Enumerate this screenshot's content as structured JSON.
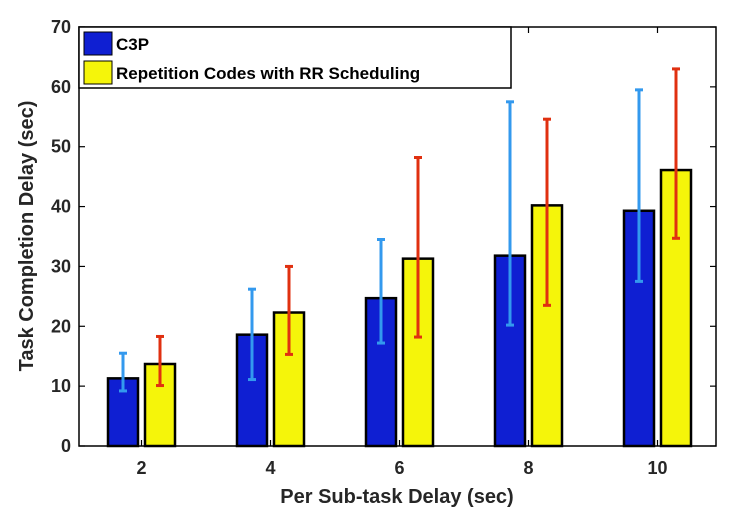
{
  "chart_data": {
    "type": "bar",
    "title": "",
    "xlabel": "Per Sub-task Delay (sec)",
    "ylabel": "Task Completion Delay (sec)",
    "categories": [
      "2",
      "4",
      "6",
      "8",
      "10"
    ],
    "ylim": [
      0,
      70
    ],
    "yticks": [
      "0",
      "10",
      "20",
      "30",
      "40",
      "50",
      "60",
      "70"
    ],
    "grid": false,
    "legend_position": "top-left",
    "series": [
      {
        "name": "C3P",
        "color": "#0f1fd2",
        "error_color": "#3399ee",
        "values": [
          11.3,
          18.6,
          24.7,
          31.8,
          39.3
        ],
        "err_low": [
          9.2,
          11.1,
          17.2,
          20.2,
          27.5
        ],
        "err_high": [
          15.5,
          26.2,
          34.5,
          57.5,
          59.5
        ]
      },
      {
        "name": "Repetition Codes with RR Scheduling",
        "color": "#f5f50a",
        "error_color": "#e03010",
        "values": [
          13.7,
          22.3,
          31.3,
          40.2,
          46.1
        ],
        "err_low": [
          10.1,
          15.3,
          18.2,
          23.5,
          34.7
        ],
        "err_high": [
          18.3,
          30.0,
          48.2,
          54.6,
          63.0
        ]
      }
    ]
  }
}
